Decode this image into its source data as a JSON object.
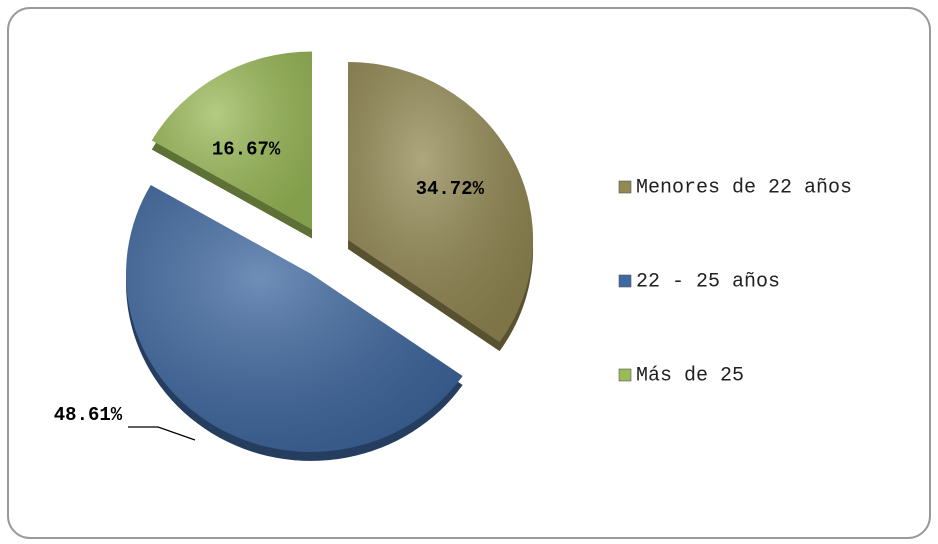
{
  "chart_data": {
    "type": "pie",
    "categories": [
      "Menores de 22 años",
      "22 - 25 años",
      "Más de 25"
    ],
    "values": [
      34.72,
      48.61,
      16.67
    ],
    "value_labels": [
      "34.72%",
      "48.61%",
      "16.67%"
    ],
    "colors": [
      "#938953",
      "#3f68a0",
      "#9bbb59"
    ],
    "legend": "right"
  }
}
